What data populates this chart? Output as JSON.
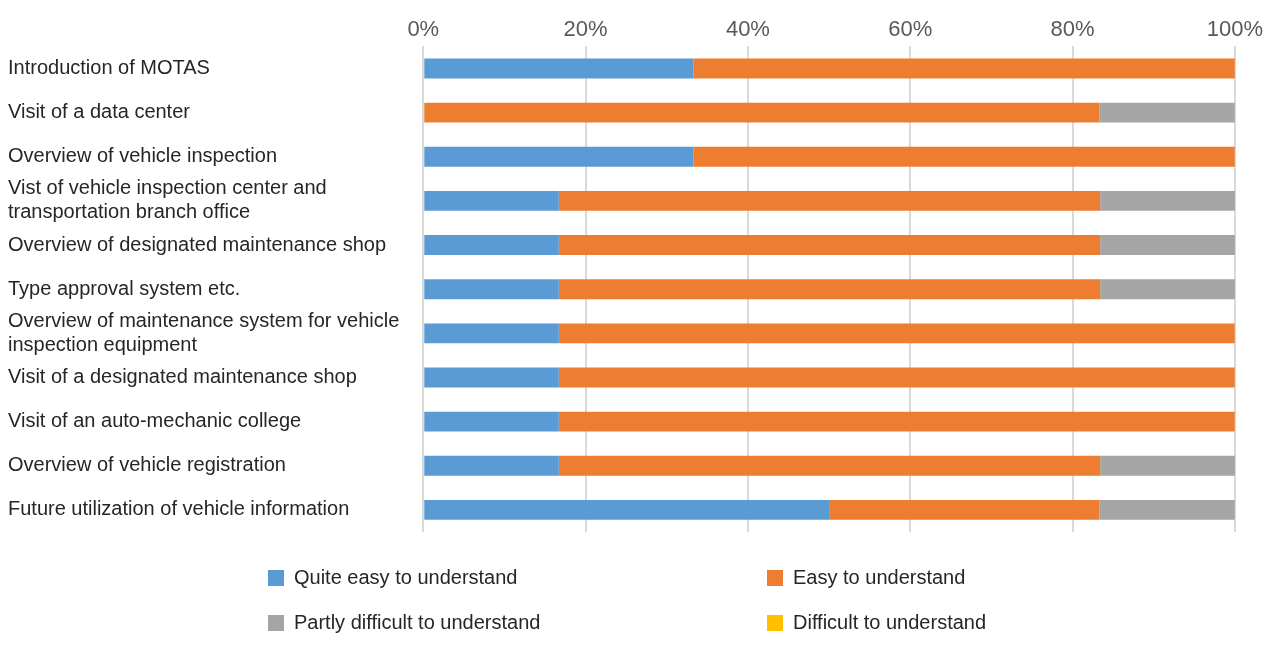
{
  "chart_data": {
    "type": "bar",
    "orientation": "horizontal",
    "stacked": true,
    "categories": [
      "Introduction of MOTAS",
      "Visit of a data center",
      "Overview of vehicle inspection",
      "Vist of vehicle inspection center and transportation branch office",
      "Overview of designated maintenance shop",
      "Type approval system etc.",
      "Overview of maintenance system for vehicle inspection equipment",
      "Visit of a designated maintenance shop",
      "Visit of an auto-mechanic college",
      "Overview of vehicle registration",
      "Future utilization of vehicle information"
    ],
    "series": [
      {
        "name": "Quite easy to understand",
        "color": "#5b9bd5",
        "values": [
          33.3,
          0,
          33.3,
          16.7,
          16.7,
          16.7,
          16.7,
          16.7,
          16.7,
          16.7,
          50
        ]
      },
      {
        "name": "Easy to understand",
        "color": "#ed7d31",
        "values": [
          66.7,
          83.3,
          66.7,
          66.7,
          66.7,
          66.7,
          83.3,
          83.3,
          83.3,
          66.7,
          33.3
        ]
      },
      {
        "name": "Partly difficult to understand",
        "color": "#a5a5a5",
        "values": [
          0,
          16.7,
          0,
          16.7,
          16.7,
          16.7,
          0,
          0,
          0,
          16.7,
          16.7
        ]
      },
      {
        "name": "Difficult to understand",
        "color": "#ffc000",
        "values": [
          0,
          0,
          0,
          0,
          0,
          0,
          0,
          0,
          0,
          0,
          0
        ]
      }
    ],
    "xlim": [
      0,
      100
    ],
    "xticks": [
      {
        "value": 0,
        "label": "0%"
      },
      {
        "value": 20,
        "label": "20%"
      },
      {
        "value": 40,
        "label": "40%"
      },
      {
        "value": 60,
        "label": "60%"
      },
      {
        "value": 80,
        "label": "80%"
      },
      {
        "value": 100,
        "label": "100%"
      }
    ],
    "grid": "x",
    "legend": "bottom"
  }
}
